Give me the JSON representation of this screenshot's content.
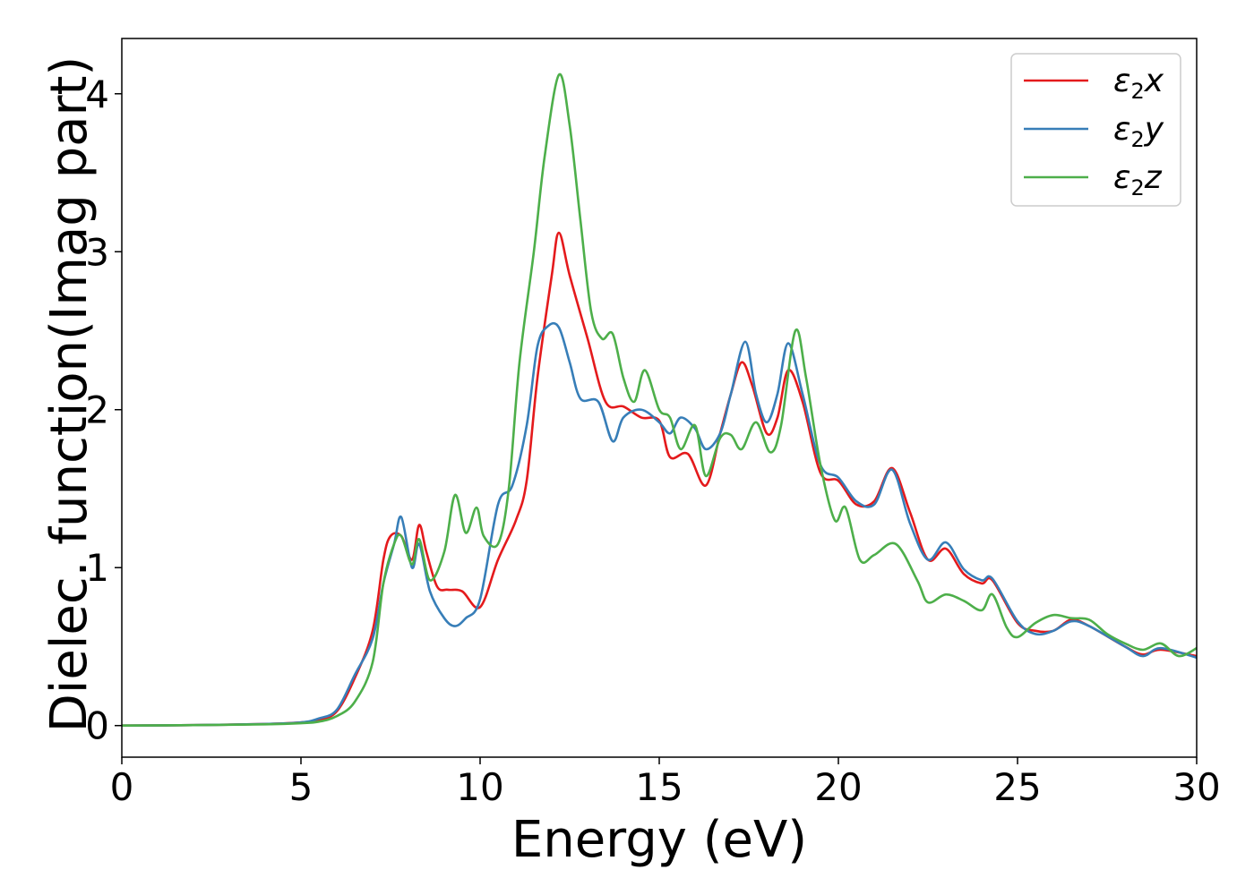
{
  "chart_data": {
    "type": "line",
    "xlabel": "Energy (eV)",
    "ylabel": "Dielec. function(Imag part)",
    "xlim": [
      0,
      30
    ],
    "ylim": [
      -0.2,
      4.35
    ],
    "xticks": [
      "0",
      "5",
      "10",
      "15",
      "20",
      "25",
      "30"
    ],
    "yticks": [
      "0",
      "1",
      "2",
      "3",
      "4"
    ],
    "grid": false,
    "legend_position": "top-right",
    "series": [
      {
        "name": "ε2x",
        "legend_main": "ε",
        "legend_sub": "2",
        "legend_tail": "x",
        "color": "#e41a1c",
        "points": [
          [
            0,
            0
          ],
          [
            2,
            0.003
          ],
          [
            4,
            0.01
          ],
          [
            5,
            0.02
          ],
          [
            5.5,
            0.035
          ],
          [
            6,
            0.09
          ],
          [
            6.5,
            0.3
          ],
          [
            7,
            0.6
          ],
          [
            7.3,
            1.05
          ],
          [
            7.5,
            1.2
          ],
          [
            7.8,
            1.2
          ],
          [
            8.1,
            1.05
          ],
          [
            8.3,
            1.27
          ],
          [
            8.5,
            1.1
          ],
          [
            8.8,
            0.88
          ],
          [
            9.1,
            0.86
          ],
          [
            9.5,
            0.85
          ],
          [
            10,
            0.75
          ],
          [
            10.5,
            1.05
          ],
          [
            11,
            1.3
          ],
          [
            11.3,
            1.55
          ],
          [
            11.6,
            2.2
          ],
          [
            12,
            2.85
          ],
          [
            12.2,
            3.12
          ],
          [
            12.5,
            2.85
          ],
          [
            13,
            2.45
          ],
          [
            13.5,
            2.05
          ],
          [
            14,
            2.02
          ],
          [
            14.5,
            1.95
          ],
          [
            15,
            1.93
          ],
          [
            15.3,
            1.7
          ],
          [
            15.8,
            1.72
          ],
          [
            16.3,
            1.52
          ],
          [
            16.7,
            1.85
          ],
          [
            17,
            2.1
          ],
          [
            17.3,
            2.3
          ],
          [
            17.6,
            2.15
          ],
          [
            18,
            1.85
          ],
          [
            18.3,
            1.95
          ],
          [
            18.6,
            2.25
          ],
          [
            19,
            2.05
          ],
          [
            19.5,
            1.6
          ],
          [
            20,
            1.55
          ],
          [
            20.5,
            1.4
          ],
          [
            21,
            1.42
          ],
          [
            21.5,
            1.63
          ],
          [
            22,
            1.35
          ],
          [
            22.5,
            1.05
          ],
          [
            23,
            1.12
          ],
          [
            23.5,
            0.96
          ],
          [
            24,
            0.9
          ],
          [
            24.3,
            0.92
          ],
          [
            25,
            0.65
          ],
          [
            25.5,
            0.6
          ],
          [
            26,
            0.6
          ],
          [
            26.5,
            0.67
          ],
          [
            27,
            0.63
          ],
          [
            28,
            0.5
          ],
          [
            28.5,
            0.45
          ],
          [
            29,
            0.48
          ],
          [
            30,
            0.44
          ]
        ]
      },
      {
        "name": "ε2y",
        "legend_main": "ε",
        "legend_sub": "2",
        "legend_tail": "y",
        "color": "#377eb8",
        "points": [
          [
            0,
            0
          ],
          [
            2,
            0.003
          ],
          [
            4,
            0.01
          ],
          [
            5,
            0.02
          ],
          [
            5.5,
            0.045
          ],
          [
            6,
            0.1
          ],
          [
            6.5,
            0.32
          ],
          [
            7,
            0.55
          ],
          [
            7.3,
            0.9
          ],
          [
            7.6,
            1.15
          ],
          [
            7.8,
            1.32
          ],
          [
            8.1,
            1.0
          ],
          [
            8.3,
            1.15
          ],
          [
            8.6,
            0.85
          ],
          [
            9,
            0.68
          ],
          [
            9.3,
            0.63
          ],
          [
            9.6,
            0.68
          ],
          [
            10,
            0.8
          ],
          [
            10.5,
            1.4
          ],
          [
            10.9,
            1.52
          ],
          [
            11.3,
            1.9
          ],
          [
            11.6,
            2.4
          ],
          [
            11.9,
            2.53
          ],
          [
            12.2,
            2.52
          ],
          [
            12.5,
            2.3
          ],
          [
            12.8,
            2.07
          ],
          [
            13.3,
            2.05
          ],
          [
            13.7,
            1.8
          ],
          [
            14,
            1.95
          ],
          [
            14.5,
            2.0
          ],
          [
            15,
            1.92
          ],
          [
            15.3,
            1.85
          ],
          [
            15.6,
            1.95
          ],
          [
            16,
            1.88
          ],
          [
            16.3,
            1.75
          ],
          [
            16.7,
            1.85
          ],
          [
            17,
            2.1
          ],
          [
            17.4,
            2.43
          ],
          [
            17.7,
            2.1
          ],
          [
            18,
            1.92
          ],
          [
            18.3,
            2.1
          ],
          [
            18.6,
            2.42
          ],
          [
            19,
            2.1
          ],
          [
            19.5,
            1.65
          ],
          [
            20,
            1.57
          ],
          [
            20.5,
            1.42
          ],
          [
            21,
            1.4
          ],
          [
            21.5,
            1.62
          ],
          [
            22,
            1.28
          ],
          [
            22.5,
            1.05
          ],
          [
            23,
            1.16
          ],
          [
            23.5,
            0.99
          ],
          [
            24,
            0.92
          ],
          [
            24.3,
            0.93
          ],
          [
            25,
            0.66
          ],
          [
            25.5,
            0.58
          ],
          [
            26,
            0.6
          ],
          [
            26.5,
            0.66
          ],
          [
            27,
            0.63
          ],
          [
            28,
            0.5
          ],
          [
            28.5,
            0.44
          ],
          [
            29,
            0.49
          ],
          [
            30,
            0.43
          ]
        ]
      },
      {
        "name": "ε2z",
        "legend_main": "ε",
        "legend_sub": "2",
        "legend_tail": "z",
        "color": "#4daf4a",
        "points": [
          [
            0,
            0
          ],
          [
            2,
            0.003
          ],
          [
            4,
            0.008
          ],
          [
            5,
            0.015
          ],
          [
            5.5,
            0.025
          ],
          [
            6,
            0.06
          ],
          [
            6.5,
            0.15
          ],
          [
            7,
            0.4
          ],
          [
            7.3,
            0.9
          ],
          [
            7.6,
            1.15
          ],
          [
            7.8,
            1.2
          ],
          [
            8.1,
            1.02
          ],
          [
            8.3,
            1.18
          ],
          [
            8.6,
            0.92
          ],
          [
            9,
            1.1
          ],
          [
            9.3,
            1.46
          ],
          [
            9.6,
            1.22
          ],
          [
            9.9,
            1.38
          ],
          [
            10.1,
            1.2
          ],
          [
            10.5,
            1.15
          ],
          [
            10.8,
            1.5
          ],
          [
            11.1,
            2.3
          ],
          [
            11.5,
            3.0
          ],
          [
            11.8,
            3.6
          ],
          [
            12.2,
            4.12
          ],
          [
            12.5,
            3.8
          ],
          [
            12.8,
            3.2
          ],
          [
            13.1,
            2.62
          ],
          [
            13.4,
            2.45
          ],
          [
            13.7,
            2.48
          ],
          [
            14,
            2.2
          ],
          [
            14.3,
            2.05
          ],
          [
            14.6,
            2.25
          ],
          [
            15,
            2.0
          ],
          [
            15.3,
            1.95
          ],
          [
            15.6,
            1.75
          ],
          [
            16,
            1.9
          ],
          [
            16.3,
            1.58
          ],
          [
            16.7,
            1.82
          ],
          [
            17,
            1.84
          ],
          [
            17.3,
            1.75
          ],
          [
            17.7,
            1.92
          ],
          [
            18.1,
            1.73
          ],
          [
            18.4,
            1.9
          ],
          [
            18.8,
            2.5
          ],
          [
            19.1,
            2.2
          ],
          [
            19.5,
            1.65
          ],
          [
            19.9,
            1.3
          ],
          [
            20.2,
            1.38
          ],
          [
            20.6,
            1.05
          ],
          [
            21,
            1.08
          ],
          [
            21.6,
            1.15
          ],
          [
            22.2,
            0.92
          ],
          [
            22.5,
            0.78
          ],
          [
            23,
            0.83
          ],
          [
            23.5,
            0.79
          ],
          [
            24,
            0.73
          ],
          [
            24.3,
            0.83
          ],
          [
            24.7,
            0.62
          ],
          [
            25,
            0.56
          ],
          [
            25.5,
            0.65
          ],
          [
            26,
            0.7
          ],
          [
            26.5,
            0.68
          ],
          [
            27,
            0.67
          ],
          [
            27.5,
            0.58
          ],
          [
            28,
            0.52
          ],
          [
            28.5,
            0.48
          ],
          [
            29,
            0.52
          ],
          [
            29.5,
            0.44
          ],
          [
            30,
            0.49
          ]
        ]
      }
    ]
  }
}
